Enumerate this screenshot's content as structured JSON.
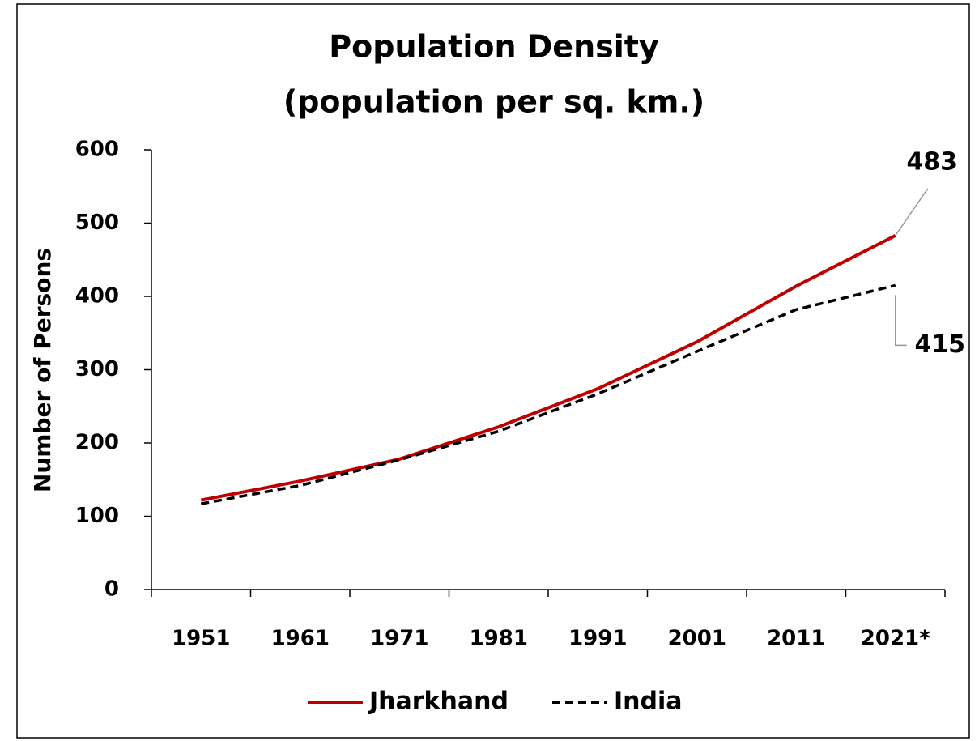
{
  "chart_data": {
    "type": "line",
    "title": "Population Density",
    "subtitle": "(population per sq. km.)",
    "y_label": "Number of Persons",
    "categories": [
      "1951",
      "1961",
      "1971",
      "1981",
      "1991",
      "2001",
      "2011",
      "2021*"
    ],
    "series": [
      {
        "name": "Jharkhand",
        "color": "#c00000",
        "values": [
          122,
          148,
          178,
          222,
          274,
          338,
          414,
          483
        ]
      },
      {
        "name": "India",
        "color": "#000000",
        "values": [
          117,
          142,
          177,
          216,
          267,
          325,
          382,
          415
        ]
      }
    ],
    "ylim": [
      0,
      600
    ],
    "yticks": [
      0,
      100,
      200,
      300,
      400,
      500,
      600
    ]
  }
}
